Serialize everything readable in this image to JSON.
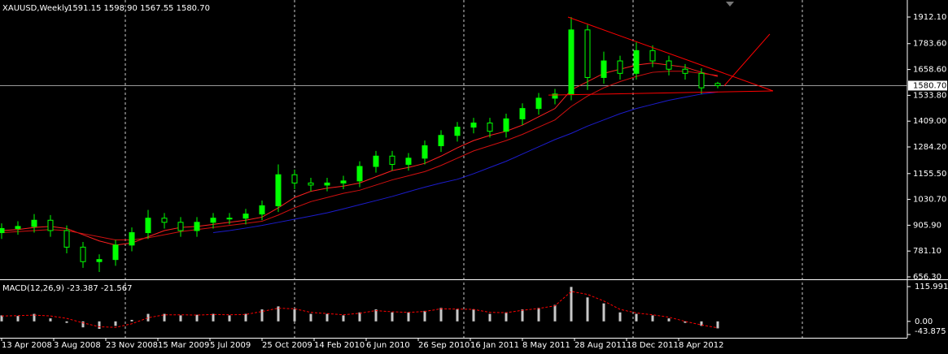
{
  "chart_data": [
    {
      "type": "candlestick",
      "title": "XAUUSD,Weekly",
      "subtitle": "1591.15 1598.90 1567.55 1580.70",
      "x": [
        0,
        5,
        10,
        15,
        20,
        25,
        30,
        35,
        40,
        45,
        50,
        55,
        60,
        65,
        70,
        75,
        80,
        85,
        90,
        95,
        100,
        105,
        110,
        115,
        120,
        125,
        130,
        135,
        140,
        145,
        150,
        155,
        160,
        165,
        170,
        175,
        180,
        185,
        190,
        195,
        200,
        205,
        210,
        215,
        220
      ],
      "open": [
        870,
        890,
        900,
        930,
        880,
        800,
        730,
        740,
        810,
        870,
        940,
        920,
        880,
        920,
        940,
        940,
        960,
        1000,
        1150,
        1110,
        1100,
        1110,
        1120,
        1190,
        1240,
        1200,
        1230,
        1290,
        1340,
        1380,
        1400,
        1360,
        1420,
        1470,
        1520,
        1540,
        1850,
        1620,
        1700,
        1640,
        1750,
        1700,
        1660,
        1640,
        1591.15
      ],
      "high": [
        915,
        925,
        960,
        955,
        905,
        825,
        765,
        835,
        895,
        980,
        965,
        945,
        945,
        965,
        965,
        985,
        1025,
        1200,
        1175,
        1135,
        1135,
        1145,
        1215,
        1265,
        1265,
        1255,
        1315,
        1365,
        1405,
        1425,
        1425,
        1445,
        1495,
        1545,
        1565,
        1912,
        1875,
        1745,
        1725,
        1790,
        1775,
        1725,
        1685,
        1665,
        1598.9
      ],
      "low": [
        840,
        860,
        870,
        850,
        770,
        700,
        680,
        710,
        780,
        840,
        890,
        850,
        850,
        890,
        910,
        910,
        930,
        970,
        1080,
        1070,
        1070,
        1080,
        1090,
        1160,
        1170,
        1170,
        1200,
        1260,
        1310,
        1350,
        1330,
        1330,
        1390,
        1440,
        1490,
        1510,
        1560,
        1590,
        1610,
        1610,
        1670,
        1630,
        1610,
        1540,
        1567.55
      ],
      "close": [
        890,
        900,
        930,
        880,
        800,
        730,
        740,
        810,
        870,
        940,
        920,
        880,
        920,
        940,
        940,
        960,
        1000,
        1150,
        1110,
        1100,
        1110,
        1120,
        1190,
        1240,
        1200,
        1230,
        1290,
        1340,
        1380,
        1400,
        1360,
        1420,
        1470,
        1520,
        1540,
        1850,
        1620,
        1700,
        1640,
        1750,
        1700,
        1660,
        1640,
        1570,
        1580.7
      ],
      "candle_color": "#00ff00",
      "lines": [
        {
          "color": "#ff2020",
          "values": [
            880,
            885,
            895,
            900,
            890,
            860,
            830,
            810,
            820,
            850,
            880,
            895,
            900,
            910,
            920,
            930,
            945,
            990,
            1040,
            1070,
            1085,
            1095,
            1110,
            1140,
            1170,
            1185,
            1205,
            1240,
            1280,
            1315,
            1340,
            1360,
            1390,
            1430,
            1470,
            1560,
            1600,
            1640,
            1660,
            1680,
            1690,
            1680,
            1670,
            1645,
            1625
          ]
        },
        {
          "color": "#d01010",
          "values": [
            870,
            875,
            880,
            885,
            880,
            865,
            850,
            835,
            835,
            845,
            860,
            875,
            885,
            895,
            905,
            915,
            925,
            955,
            990,
            1020,
            1040,
            1060,
            1075,
            1100,
            1125,
            1145,
            1165,
            1195,
            1230,
            1265,
            1290,
            1315,
            1345,
            1380,
            1415,
            1480,
            1530,
            1570,
            1600,
            1625,
            1645,
            1650,
            1650,
            1640,
            1630
          ]
        },
        {
          "color": "#1c1ccc",
          "values": [
            null,
            null,
            null,
            null,
            null,
            null,
            null,
            null,
            null,
            null,
            null,
            null,
            null,
            870,
            880,
            892,
            905,
            920,
            935,
            950,
            966,
            985,
            1005,
            1025,
            1045,
            1068,
            1090,
            1110,
            1128,
            1155,
            1185,
            1215,
            1250,
            1285,
            1320,
            1350,
            1385,
            1415,
            1445,
            1470,
            1490,
            1510,
            1525,
            1540,
            1550
          ]
        }
      ],
      "trendlines": [
        {
          "x": [
            174,
            237
          ],
          "y": [
            1912,
            1555
          ]
        },
        {
          "x": [
            168,
            237
          ],
          "y": [
            1535,
            1555
          ]
        },
        {
          "x": [
            222,
            236
          ],
          "y": [
            1580,
            1830
          ]
        }
      ],
      "trendline_color": "#ff0000",
      "last_price": {
        "value": 1580.7,
        "label": "1580.70"
      },
      "xlim": [
        0,
        278
      ],
      "xgrid": [
        38,
        90,
        142,
        194,
        246
      ],
      "ylim": [
        656.3,
        1912.1
      ],
      "yticks": [
        {
          "value": 1912.1,
          "label": "1912.10"
        },
        {
          "value": 1783.6,
          "label": "1783.60"
        },
        {
          "value": 1658.6,
          "label": "1658.60"
        },
        {
          "value": 1533.8,
          "label": "1533.80"
        },
        {
          "value": 1409,
          "label": "1409.00"
        },
        {
          "value": 1284.2,
          "label": "1284.20"
        },
        {
          "value": 1155.5,
          "label": "1155.50"
        },
        {
          "value": 1030.7,
          "label": "1030.70"
        },
        {
          "value": 905.9,
          "label": "905.90"
        },
        {
          "value": 781.1,
          "label": "781.10"
        },
        {
          "value": 656.3,
          "label": "656.30"
        }
      ]
    },
    {
      "type": "bar",
      "title": "MACD(12,26,9) -23.387 -21.567",
      "x": [
        0,
        5,
        10,
        15,
        20,
        25,
        30,
        35,
        40,
        45,
        50,
        55,
        60,
        65,
        70,
        75,
        80,
        85,
        90,
        95,
        100,
        105,
        110,
        115,
        120,
        125,
        130,
        135,
        140,
        145,
        150,
        155,
        160,
        165,
        170,
        175,
        180,
        185,
        190,
        195,
        200,
        205,
        210,
        215,
        220
      ],
      "values": [
        20,
        18,
        25,
        10,
        -5,
        -20,
        -25,
        -15,
        5,
        25,
        25,
        20,
        22,
        25,
        20,
        25,
        40,
        50,
        40,
        25,
        25,
        20,
        30,
        40,
        30,
        30,
        35,
        45,
        40,
        40,
        25,
        30,
        40,
        45,
        55,
        115,
        80,
        60,
        30,
        25,
        20,
        10,
        -5,
        -15,
        -23.387
      ],
      "color": "#c8c8c8",
      "signal": {
        "color": "#ff0000",
        "values": [
          18,
          19,
          21,
          18,
          10,
          -5,
          -18,
          -20,
          -8,
          12,
          22,
          22,
          21,
          23,
          22,
          23,
          33,
          44,
          42,
          30,
          26,
          22,
          27,
          36,
          32,
          30,
          33,
          42,
          41,
          40,
          30,
          29,
          37,
          43,
          52,
          100,
          90,
          68,
          40,
          28,
          22,
          14,
          0,
          -12,
          -21.567
        ]
      },
      "xlim": [
        0,
        278
      ],
      "ylim": [
        -43.875,
        115.991
      ],
      "yticks": [
        115.991,
        {
          "value": 0,
          "label": "0.00"
        },
        -43.875
      ],
      "xticks": [
        {
          "value": 0,
          "label": "13 Apr 2008"
        },
        {
          "value": 16,
          "label": "3 Aug 2008"
        },
        {
          "value": 32,
          "label": "23 Nov 2008"
        },
        {
          "value": 48,
          "label": "15 Mar 2009"
        },
        {
          "value": 64,
          "label": "5 Jul 2009"
        },
        {
          "value": 80,
          "label": "25 Oct 2009"
        },
        {
          "value": 96,
          "label": "14 Feb 2010"
        },
        {
          "value": 112,
          "label": "6 Jun 2010"
        },
        {
          "value": 128,
          "label": "26 Sep 2010"
        },
        {
          "value": 144,
          "label": "16 Jan 2011"
        },
        {
          "value": 160,
          "label": "8 May 2011"
        },
        {
          "value": 176,
          "label": "28 Aug 2011"
        },
        {
          "value": 192,
          "label": "18 Dec 2011"
        },
        {
          "value": 208,
          "label": "8 Apr 2012"
        }
      ]
    }
  ]
}
